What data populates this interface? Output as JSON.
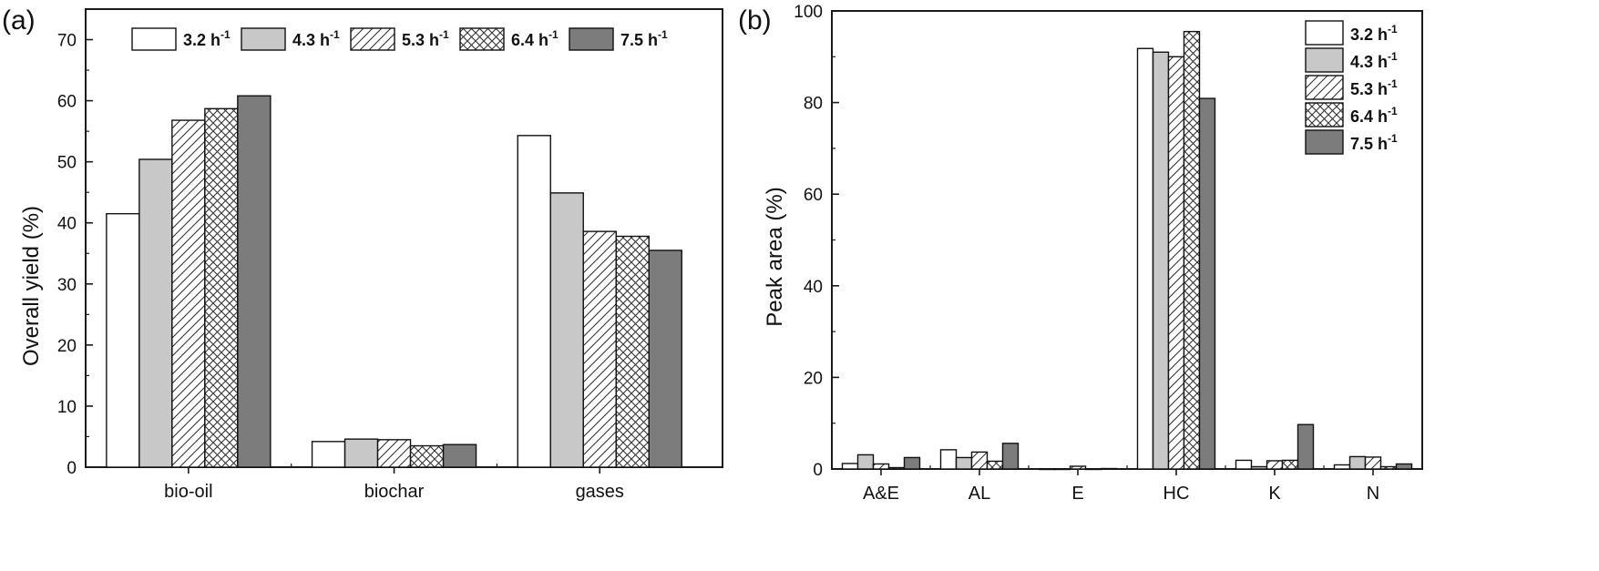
{
  "chart_data": [
    {
      "type": "bar",
      "panel_label": "(a)",
      "ylabel": "Overall yield (%)",
      "xlabel": "",
      "ylim": [
        0,
        75
      ],
      "yticks": [
        0,
        10,
        20,
        30,
        40,
        50,
        60,
        70
      ],
      "legend_position": "top",
      "categories": [
        "bio-oil",
        "biochar",
        "gases"
      ],
      "series": [
        {
          "name": "3.2",
          "unit": "h",
          "exp": "-1",
          "label": "3.2 h-1",
          "pattern": "white",
          "values": [
            41.5,
            4.2,
            54.3
          ]
        },
        {
          "name": "4.3",
          "unit": "h",
          "exp": "-1",
          "label": "4.3 h-1",
          "pattern": "lightgray",
          "values": [
            50.4,
            4.6,
            44.9
          ]
        },
        {
          "name": "5.3",
          "unit": "h",
          "exp": "-1",
          "label": "5.3 h-1",
          "pattern": "hatch",
          "values": [
            56.8,
            4.5,
            38.6
          ]
        },
        {
          "name": "6.4",
          "unit": "h",
          "exp": "-1",
          "label": "6.4 h-1",
          "pattern": "crosshatch",
          "values": [
            58.7,
            3.5,
            37.8
          ]
        },
        {
          "name": "7.5",
          "unit": "h",
          "exp": "-1",
          "label": "7.5 h-1",
          "pattern": "darkgray",
          "values": [
            60.8,
            3.7,
            35.5
          ]
        }
      ]
    },
    {
      "type": "bar",
      "panel_label": "(b)",
      "ylabel": "Peak area (%)",
      "xlabel": "",
      "ylim": [
        0,
        100
      ],
      "yticks": [
        0,
        20,
        40,
        60,
        80,
        100
      ],
      "legend_position": "top-right",
      "categories": [
        "A&E",
        "AL",
        "E",
        "HC",
        "K",
        "N"
      ],
      "series": [
        {
          "name": "3.2",
          "unit": "h",
          "exp": "-1",
          "label": "3.2 h-1",
          "pattern": "white",
          "values": [
            1.2,
            4.2,
            0,
            91.8,
            1.9,
            0.9
          ]
        },
        {
          "name": "4.3",
          "unit": "h",
          "exp": "-1",
          "label": "4.3 h-1",
          "pattern": "lightgray",
          "values": [
            3.1,
            2.5,
            0,
            91.0,
            0.5,
            2.7
          ]
        },
        {
          "name": "5.3",
          "unit": "h",
          "exp": "-1",
          "label": "5.3 h-1",
          "pattern": "hatch",
          "values": [
            1.1,
            3.7,
            0.6,
            90.0,
            1.8,
            2.6
          ]
        },
        {
          "name": "6.4",
          "unit": "h",
          "exp": "-1",
          "label": "6.4 h-1",
          "pattern": "crosshatch",
          "values": [
            0.3,
            1.7,
            0,
            95.5,
            1.9,
            0.5
          ]
        },
        {
          "name": "7.5",
          "unit": "h",
          "exp": "-1",
          "label": "7.5 h-1",
          "pattern": "darkgray",
          "values": [
            2.5,
            5.6,
            0.1,
            80.9,
            9.7,
            1.1
          ]
        }
      ]
    }
  ],
  "colors": {
    "axis": "#1a1a1a",
    "white_fill": "#ffffff",
    "light_fill": "#c8c8c8",
    "dark_fill": "#7c7c7c",
    "pattern_line": "#333333"
  }
}
